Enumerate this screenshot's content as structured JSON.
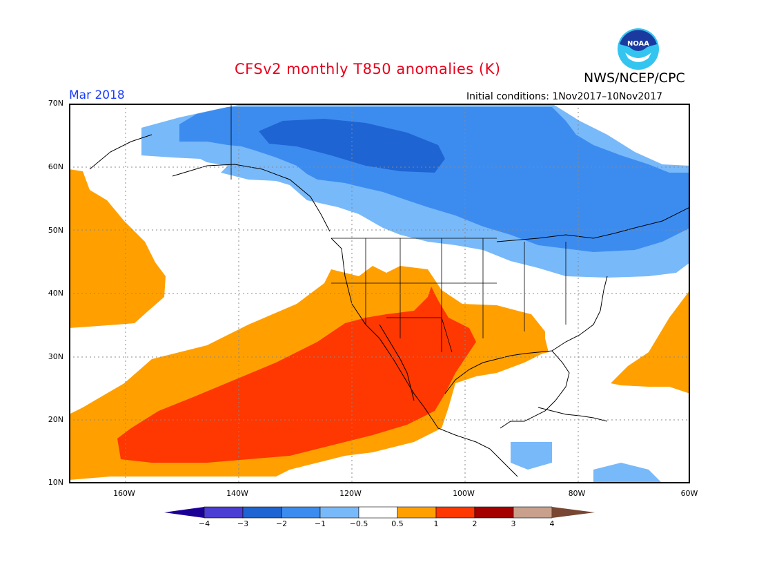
{
  "title": "CFSv2 monthly T850 anomalies (K)",
  "agency": "NWS/NCEP/CPC",
  "logo_text": "NOAA",
  "month": "Mar 2018",
  "initial_conditions": "Initial conditions: 1Nov2017–10Nov2017",
  "colors": {
    "title": "#e8001c",
    "month": "#1a3cff"
  },
  "map": {
    "lon_range": [
      -170,
      -60
    ],
    "lat_range": [
      10,
      70
    ],
    "lat_ticks": [
      "70N",
      "60N",
      "50N",
      "40N",
      "30N",
      "20N",
      "10N"
    ],
    "lon_ticks": [
      "160W",
      "140W",
      "120W",
      "100W",
      "80W",
      "60W"
    ],
    "grid": true
  },
  "colorbar": {
    "labels": [
      "−4",
      "−3",
      "−2",
      "−1",
      "−0.5",
      "0.5",
      "1",
      "2",
      "3",
      "4"
    ],
    "colors": [
      "#1c0096",
      "#4a3ed4",
      "#1e64d2",
      "#3c8cf0",
      "#78b9fa",
      "#ffffff",
      "#ffa000",
      "#ff3700",
      "#a50000",
      "#c8a08c",
      "#784632"
    ]
  },
  "anomaly_regions": [
    {
      "level": "-1",
      "color": "#78b9fa",
      "desc": "broad cold anomaly over Alaska, Canada and northern US"
    },
    {
      "level": "-2",
      "color": "#3c8cf0",
      "desc": "colder core over northern Canada and eastern Canada"
    },
    {
      "level": "-3",
      "color": "#1e64d2",
      "desc": "coldest core over northwest Canada"
    },
    {
      "level": "1",
      "color": "#ffa000",
      "desc": "warm anomaly over eastern Pacific, southwest US, Gulf coast, NE Pacific, western Atlantic"
    },
    {
      "level": "2",
      "color": "#ff3700",
      "desc": "strong warm anomaly over subtropical eastern Pacific, Mexico and southwest US"
    }
  ]
}
